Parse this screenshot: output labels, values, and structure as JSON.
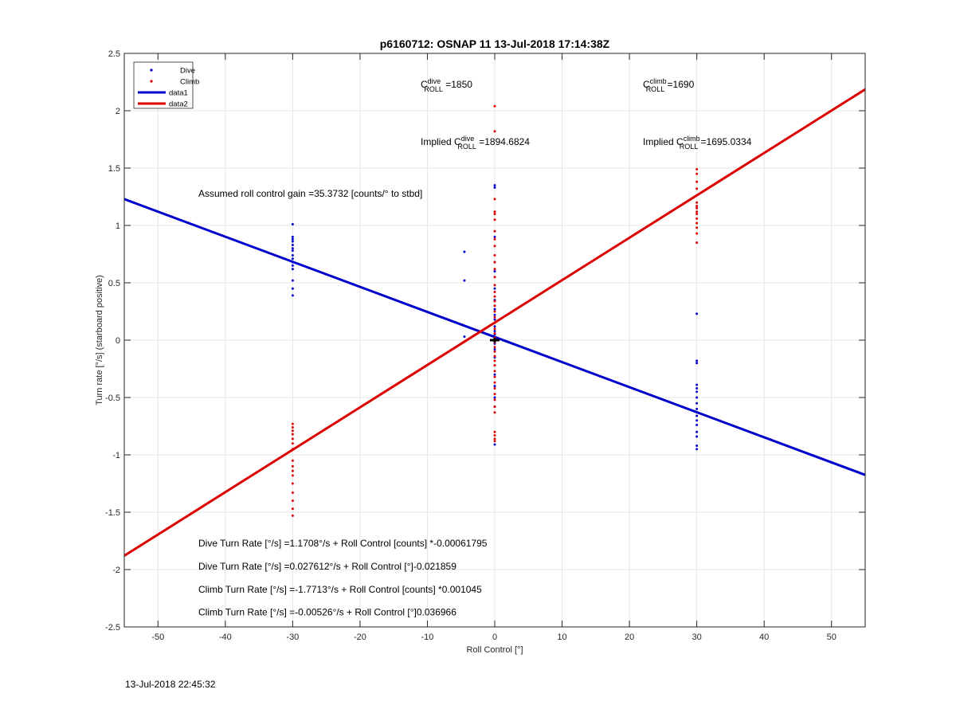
{
  "chart_data": {
    "type": "scatter",
    "title": "p6160712: OSNAP 11 13-Jul-2018 17:14:38Z",
    "xlabel": "Roll Control [°]",
    "ylabel": "Turn rate [°/s] (starboard positive)",
    "xlim": [
      -55,
      55
    ],
    "ylim": [
      -2.5,
      2.5
    ],
    "x_ticks": [
      -50,
      -40,
      -30,
      -20,
      -10,
      0,
      10,
      20,
      30,
      40,
      50
    ],
    "y_ticks": [
      -2.5,
      -2,
      -1.5,
      -1,
      -0.5,
      0,
      0.5,
      1,
      1.5,
      2,
      2.5
    ],
    "x_tick_labels": [
      "-50",
      "-40",
      "-30",
      "-20",
      "-10",
      "0",
      "10",
      "20",
      "30",
      "40",
      "50"
    ],
    "y_tick_labels": [
      "-2.5",
      "-2",
      "-1.5",
      "-1",
      "-0.5",
      "0",
      "0.5",
      "1",
      "1.5",
      "2",
      "2.5"
    ],
    "grid": true,
    "legend_position": "top-left",
    "series": [
      {
        "name": "Dive",
        "kind": "points",
        "color": "#0000cc",
        "points": [
          [
            -30,
            1.01
          ],
          [
            -30,
            0.9
          ],
          [
            -30,
            0.88
          ],
          [
            -30,
            0.86
          ],
          [
            -30,
            0.83
          ],
          [
            -30,
            0.8
          ],
          [
            -30,
            0.78
          ],
          [
            -30,
            0.74
          ],
          [
            -30,
            0.71
          ],
          [
            -30,
            0.68
          ],
          [
            -30,
            0.65
          ],
          [
            -30,
            0.62
          ],
          [
            -30,
            0.52
          ],
          [
            -30,
            0.45
          ],
          [
            -30,
            0.39
          ],
          [
            -4.5,
            0.77
          ],
          [
            -4.5,
            0.52
          ],
          [
            -4.5,
            0.03
          ],
          [
            0,
            1.35
          ],
          [
            0,
            1.33
          ],
          [
            0,
            0.9
          ],
          [
            0,
            0.68
          ],
          [
            0,
            0.6
          ],
          [
            0,
            0.45
          ],
          [
            0,
            0.35
          ],
          [
            0,
            0.3
          ],
          [
            0,
            0.27
          ],
          [
            0,
            0.22
          ],
          [
            0,
            0.18
          ],
          [
            0,
            0.12
          ],
          [
            0,
            0.08
          ],
          [
            0,
            0.05
          ],
          [
            0,
            0.02
          ],
          [
            0,
            0
          ],
          [
            0,
            -0.03
          ],
          [
            0,
            -0.08
          ],
          [
            0,
            -0.15
          ],
          [
            0,
            -0.22
          ],
          [
            0,
            -0.3
          ],
          [
            0,
            -0.4
          ],
          [
            0,
            -0.5
          ],
          [
            0,
            -0.58
          ],
          [
            0,
            -0.91
          ],
          [
            30,
            0.23
          ],
          [
            30,
            -0.18
          ],
          [
            30,
            -0.2
          ],
          [
            30,
            -0.39
          ],
          [
            30,
            -0.42
          ],
          [
            30,
            -0.45
          ],
          [
            30,
            -0.5
          ],
          [
            30,
            -0.55
          ],
          [
            30,
            -0.6
          ],
          [
            30,
            -0.63
          ],
          [
            30,
            -0.66
          ],
          [
            30,
            -0.7
          ],
          [
            30,
            -0.74
          ],
          [
            30,
            -0.8
          ],
          [
            30,
            -0.84
          ],
          [
            30,
            -0.92
          ],
          [
            30,
            -0.95
          ]
        ]
      },
      {
        "name": "Climb",
        "kind": "points",
        "color": "#dd0000",
        "points": [
          [
            -30,
            -0.73
          ],
          [
            -30,
            -0.76
          ],
          [
            -30,
            -0.79
          ],
          [
            -30,
            -0.82
          ],
          [
            -30,
            -0.86
          ],
          [
            -30,
            -0.9
          ],
          [
            -30,
            -0.95
          ],
          [
            -30,
            -1.05
          ],
          [
            -30,
            -1.1
          ],
          [
            -30,
            -1.14
          ],
          [
            -30,
            -1.18
          ],
          [
            -30,
            -1.25
          ],
          [
            -30,
            -1.33
          ],
          [
            -30,
            -1.4
          ],
          [
            -30,
            -1.47
          ],
          [
            -30,
            -1.53
          ],
          [
            0,
            2.04
          ],
          [
            0,
            1.82
          ],
          [
            0,
            1.23
          ],
          [
            0,
            1.12
          ],
          [
            0,
            1.1
          ],
          [
            0,
            1.05
          ],
          [
            0,
            0.95
          ],
          [
            0,
            0.88
          ],
          [
            0,
            0.82
          ],
          [
            0,
            0.74
          ],
          [
            0,
            0.68
          ],
          [
            0,
            0.62
          ],
          [
            0,
            0.55
          ],
          [
            0,
            0.48
          ],
          [
            0,
            0.42
          ],
          [
            0,
            0.38
          ],
          [
            0,
            0.34
          ],
          [
            0,
            0.3
          ],
          [
            0,
            0.25
          ],
          [
            0,
            0.2
          ],
          [
            0,
            0.15
          ],
          [
            0,
            0.1
          ],
          [
            0,
            0.06
          ],
          [
            0,
            0.02
          ],
          [
            0,
            -0.02
          ],
          [
            0,
            -0.06
          ],
          [
            0,
            -0.1
          ],
          [
            0,
            -0.14
          ],
          [
            0,
            -0.18
          ],
          [
            0,
            -0.22
          ],
          [
            0,
            -0.27
          ],
          [
            0,
            -0.32
          ],
          [
            0,
            -0.37
          ],
          [
            0,
            -0.42
          ],
          [
            0,
            -0.47
          ],
          [
            0,
            -0.52
          ],
          [
            0,
            -0.58
          ],
          [
            0,
            -0.63
          ],
          [
            0,
            -0.8
          ],
          [
            0,
            -0.83
          ],
          [
            0,
            -0.86
          ],
          [
            0,
            -0.88
          ],
          [
            30,
            1.49
          ],
          [
            30,
            1.45
          ],
          [
            30,
            1.38
          ],
          [
            30,
            1.32
          ],
          [
            30,
            1.2
          ],
          [
            30,
            1.17
          ],
          [
            30,
            1.15
          ],
          [
            30,
            1.12
          ],
          [
            30,
            1.1
          ],
          [
            30,
            1.06
          ],
          [
            30,
            1.02
          ],
          [
            30,
            0.98
          ],
          [
            30,
            0.93
          ],
          [
            30,
            0.85
          ]
        ]
      },
      {
        "name": "data1",
        "kind": "line",
        "color": "#0000cc",
        "x": [
          -55,
          55
        ],
        "y": [
          1.2295,
          -1.1747
        ]
      },
      {
        "name": "data2",
        "kind": "line",
        "color": "#dd0000",
        "x": [
          -55,
          55
        ],
        "y": [
          -1.8795,
          2.1863
        ]
      }
    ],
    "center_marker": {
      "x": 0,
      "y": 0,
      "color": "#000000"
    },
    "annotations": [
      {
        "pre": "C",
        "sup": "dive",
        "sub": "ROLL",
        "post": " =1850",
        "x": -11,
        "y": 2.2
      },
      {
        "pre": "C",
        "sup": "climb",
        "sub": "ROLL",
        "post": " =1690",
        "x": 22,
        "y": 2.2
      },
      {
        "pre": "Implied C",
        "sup": "dive",
        "sub": "ROLL",
        "post": " =1894.6824",
        "x": -11,
        "y": 1.7
      },
      {
        "pre": "Implied C",
        "sup": "climb",
        "sub": "ROLL",
        "post": " =1695.0334",
        "x": 22,
        "y": 1.7
      },
      {
        "text": "Assumed roll control gain =35.3732 [counts/° to stbd]",
        "x": -44,
        "y": 1.25
      },
      {
        "text": "Dive Turn Rate [°/s] =1.1708°/s + Roll Control [counts] *-0.00061795",
        "x": -44,
        "y": -1.8
      },
      {
        "text": "Dive Turn Rate [°/s] =0.027612°/s + Roll Control [°]-0.021859",
        "x": -44,
        "y": -2.0
      },
      {
        "text": "Climb Turn Rate [°/s] =-1.7713°/s + Roll Control [counts] *0.001045",
        "x": -44,
        "y": -2.2
      },
      {
        "text": "Climb Turn Rate [°/s] =-0.00526°/s + Roll Control [°]0.036966",
        "x": -44,
        "y": -2.4
      }
    ]
  },
  "footer": {
    "timestamp": "13-Jul-2018 22:45:32"
  }
}
